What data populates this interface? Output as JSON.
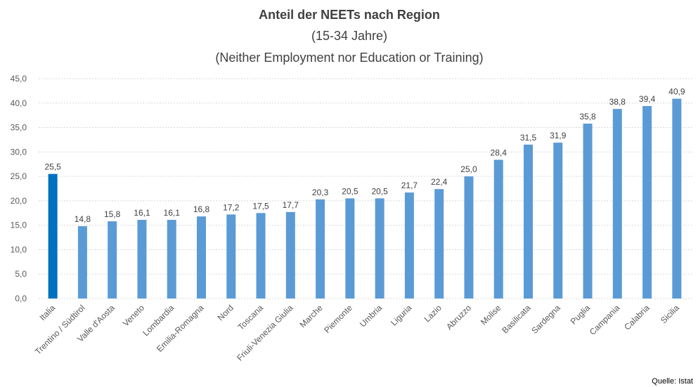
{
  "chart_data": {
    "type": "bar",
    "title": "Anteil der NEETs nach Region",
    "subtitle": [
      "(15-34 Jahre)",
      "(Neither Employment nor Education or Training)"
    ],
    "xlabel": "",
    "ylabel": "",
    "ylim": [
      0,
      45
    ],
    "yticks": [
      "0,0",
      "5,0",
      "10,0",
      "15,0",
      "20,0",
      "25,0",
      "30,0",
      "35,0",
      "40,0",
      "45,0"
    ],
    "grid": true,
    "categories": [
      "Italia",
      "Trentino / Südtirol",
      "Valle d'Aosta",
      "Veneto",
      "Lombardia",
      "Emilia-Romagna",
      "Nord",
      "Toscana",
      "Friuli-Venezia Giulia",
      "Marche",
      "Piemonte",
      "Umbria",
      "Liguria",
      "Lazio",
      "Abruzzo",
      "Molise",
      "Basilicata",
      "Sardegna",
      "Puglia",
      "Campania",
      "Calabria",
      "Sicilia"
    ],
    "values": [
      25.5,
      14.8,
      15.8,
      16.1,
      16.1,
      16.8,
      17.2,
      17.5,
      17.7,
      20.3,
      20.5,
      20.5,
      21.7,
      22.4,
      25.0,
      28.4,
      31.5,
      31.9,
      35.8,
      38.8,
      39.4,
      40.9
    ],
    "data_labels": [
      "25,5",
      "14,8",
      "15,8",
      "16,1",
      "16,1",
      "16,8",
      "17,2",
      "17,5",
      "17,7",
      "20,3",
      "20,5",
      "20,5",
      "21,7",
      "22,4",
      "25,0",
      "28,4",
      "31,5",
      "31,9",
      "35,8",
      "38,8",
      "39,4",
      "40,9"
    ],
    "colors": {
      "highlight": "#0070C0",
      "default": "#5B9BD5"
    },
    "source": "Quelle: Istat"
  }
}
